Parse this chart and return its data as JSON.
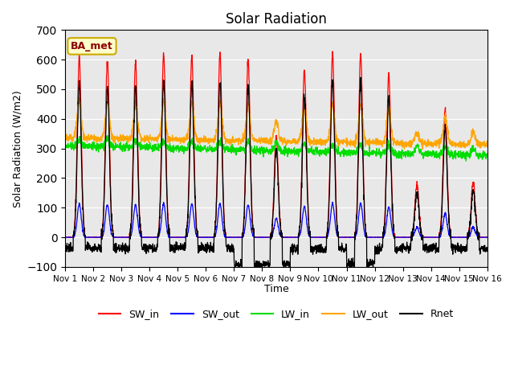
{
  "title": "Solar Radiation",
  "ylabel": "Solar Radiation (W/m2)",
  "xlabel": "Time",
  "ylim": [
    -100,
    700
  ],
  "series_colors": {
    "SW_in": "#ff0000",
    "SW_out": "#0000ff",
    "LW_in": "#00dd00",
    "LW_out": "#ffa500",
    "Rnet": "#000000"
  },
  "legend_label": "BA_met",
  "xtick_labels": [
    "Nov 1",
    "Nov 2",
    "Nov 3",
    "Nov 4",
    "Nov 5",
    "Nov 6",
    "Nov 7",
    "Nov 8",
    "Nov 9",
    "Nov 10",
    "Nov 11",
    "Nov 12",
    "Nov 13",
    "Nov 14",
    "Nov 15",
    "Nov 16"
  ],
  "bg_color": "#e8e8e8",
  "fig_color": "#ffffff",
  "n_days": 15,
  "points_per_day": 144,
  "SW_in_peaks": [
    610,
    600,
    590,
    620,
    610,
    620,
    600,
    340,
    565,
    620,
    620,
    550,
    180,
    430,
    185
  ],
  "night_rnet": [
    -35,
    -35,
    -35,
    -35,
    -35,
    -35,
    -90,
    -90,
    -40,
    -40,
    -90,
    -40,
    -35,
    -35,
    -40
  ],
  "yticks": [
    -100,
    0,
    100,
    200,
    300,
    400,
    500,
    600,
    700
  ]
}
